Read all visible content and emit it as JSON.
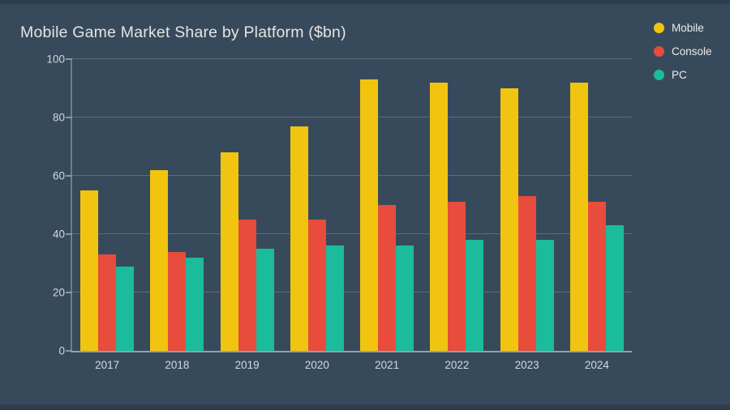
{
  "title": "Mobile Game Market Share by Platform ($bn)",
  "colors": {
    "background": "#374a5c",
    "edge_band": "#2e3d4c",
    "grid": "#5a6c7e",
    "axis_bottom": "#93a0ab",
    "axis_left": "#6e7e8d",
    "title_text": "#e6e4df",
    "axis_label_text": "#d2d8dd",
    "legend_text": "#ebebea",
    "mobile": "#f1c40f",
    "console": "#e74c3c",
    "pc": "#1abc9c"
  },
  "legend": {
    "position": "top-right",
    "items": [
      "Mobile",
      "Console",
      "PC"
    ]
  },
  "chart_data": {
    "type": "bar",
    "title": "Mobile Game Market Share by Platform ($bn)",
    "categories": [
      "2017",
      "2018",
      "2019",
      "2020",
      "2021",
      "2022",
      "2023",
      "2024"
    ],
    "series": [
      {
        "name": "Mobile",
        "color": "#f1c40f",
        "values": [
          55,
          62,
          68,
          77,
          93,
          92,
          90,
          92
        ]
      },
      {
        "name": "Console",
        "color": "#e74c3c",
        "values": [
          33,
          34,
          45,
          45,
          50,
          51,
          53,
          51
        ]
      },
      {
        "name": "PC",
        "color": "#1abc9c",
        "values": [
          29,
          32,
          35,
          36,
          36,
          38,
          38,
          43
        ]
      }
    ],
    "xlabel": "",
    "ylabel": "",
    "ylim": [
      0,
      100
    ],
    "yticks": [
      0,
      20,
      40,
      60,
      80,
      100
    ],
    "grid": true,
    "legend_position": "top-right"
  }
}
